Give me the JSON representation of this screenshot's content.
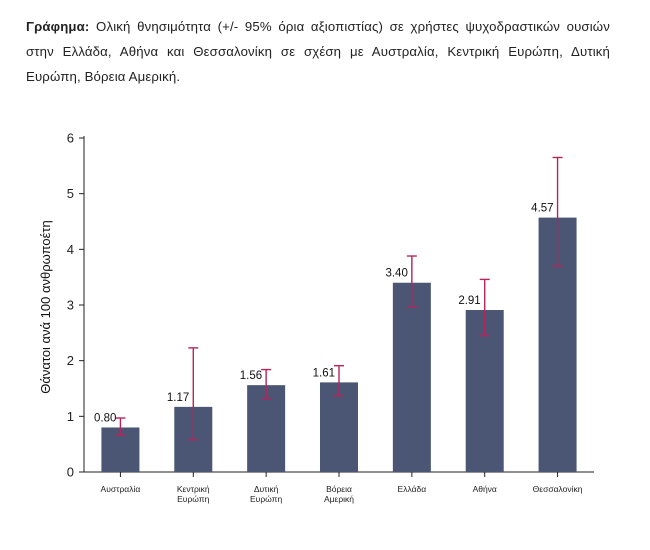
{
  "caption": {
    "prefix": "Γράφημα:",
    "text": "Ολική θνησιμότητα (+/- 95% όρια αξιοπιστίας) σε χρήστες ψυχοδραστικών ουσιών στην Ελλάδα, Αθήνα και Θεσσαλονίκη σε σχέση με Αυστραλία, Κεντρική Ευρώπη, Δυτική Ευρώπη, Βόρεια Αμερική."
  },
  "chart_data": {
    "type": "bar",
    "ylabel": "Θάνατοι ανά 100 ανθρωποέτη",
    "xlabel": "",
    "ylim": [
      0,
      6
    ],
    "yticks": [
      0,
      1,
      2,
      3,
      4,
      5,
      6
    ],
    "grid": false,
    "categories": [
      [
        "Αυστραλία"
      ],
      [
        "Κεντρική",
        "Ευρώπη"
      ],
      [
        "Δυτική",
        "Ευρώπη"
      ],
      [
        "Βόρεια",
        "Αμερική"
      ],
      [
        "Ελλάδα"
      ],
      [
        "Αθήνα"
      ],
      [
        "Θεσσαλονίκη"
      ]
    ],
    "values": [
      0.8,
      1.17,
      1.56,
      1.61,
      3.4,
      2.91,
      4.57
    ],
    "value_labels": [
      "0.80",
      "1.17",
      "1.56",
      "1.61",
      "3.40",
      "2.91",
      "4.57"
    ],
    "ci_lower": [
      0.67,
      0.58,
      1.32,
      1.37,
      2.97,
      2.45,
      3.7
    ],
    "ci_upper": [
      0.97,
      2.23,
      1.84,
      1.91,
      3.88,
      3.46,
      5.65
    ],
    "bar_color": "#4a5673",
    "error_color": "#b8245a"
  }
}
